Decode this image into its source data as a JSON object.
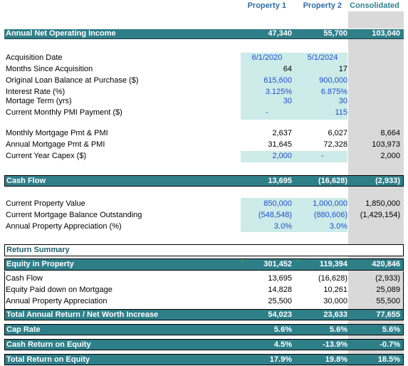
{
  "columns": {
    "p1": "Property 1",
    "p2": "Property 2",
    "cons": "Consolidated"
  },
  "noi": {
    "label": "Annual Net Operating Income",
    "p1": "47,340",
    "p2": "55,700",
    "cons": "103,040"
  },
  "details": [
    {
      "label": "Acquisition Date",
      "p1": "6/1/2020",
      "p2": "5/1/2024",
      "cons": ""
    },
    {
      "label": "Months Since Acquisition",
      "p1": "64",
      "p2": "17",
      "cons": ""
    },
    {
      "label": "Original Loan Balance at Purchase ($)",
      "p1": "615,600",
      "p2": "900,000",
      "cons": ""
    },
    {
      "label": "Interest Rate (%)",
      "p1": "3.125%",
      "p2": "6.875%",
      "cons": ""
    },
    {
      "label": "Mortage Term (yrs)",
      "p1": "30",
      "p2": "30",
      "cons": ""
    },
    {
      "label": "Current Monthly PMI Payment ($)",
      "p1": "-",
      "p2": "115",
      "cons": ""
    }
  ],
  "payments": [
    {
      "label": "Monthly Mortgage Pmt & PMI",
      "p1": "2,637",
      "p2": "6,027",
      "cons": "8,664"
    },
    {
      "label": "Annual Mortgage Pmt & PMI",
      "p1": "31,645",
      "p2": "72,328",
      "cons": "103,973"
    },
    {
      "label": "Current Year Capex ($)",
      "p1": "2,000",
      "p2": "-",
      "cons": "2,000"
    }
  ],
  "cash_flow": {
    "label": "Cash Flow",
    "p1": "13,695",
    "p2": "(16,628)",
    "cons": "(2,933)"
  },
  "values": [
    {
      "label": "Current Property Value",
      "p1": "850,000",
      "p2": "1,000,000",
      "cons": "1,850,000"
    },
    {
      "label": "Current Mortgage Balance Outstanding",
      "p1": "(548,548)",
      "p2": "(880,606)",
      "cons": "(1,429,154)"
    },
    {
      "label": "Annual Property Appreciation (%)",
      "p1": "3.0%",
      "p2": "3.0%",
      "cons": ""
    }
  ],
  "return_summary": {
    "title": "Return Summary",
    "equity": {
      "label": "Equity in Property",
      "p1": "301,452",
      "p2": "119,394",
      "cons": "420,846"
    },
    "items": [
      {
        "label": "Cash Flow",
        "p1": "13,695",
        "p2": "(16,628)",
        "cons": "(2,933)"
      },
      {
        "label": "Equity Paid down on Mortgage",
        "p1": "14,828",
        "p2": "10,261",
        "cons": "25,089"
      },
      {
        "label": "Annual Property Appreciation",
        "p1": "25,500",
        "p2": "30,000",
        "cons": "55,500"
      }
    ],
    "total": {
      "label": "Total Annual Return / Net Worth Increase",
      "p1": "54,023",
      "p2": "23,633",
      "cons": "77,655"
    },
    "cap_rate": {
      "label": "Cap Rate",
      "p1": "5.6%",
      "p2": "5.6%",
      "cons": "5.6%"
    },
    "cash_return": {
      "label": "Cash Return on Equity",
      "p1": "4.5%",
      "p2": "-13.9%",
      "cons": "-0.7%"
    },
    "total_return": {
      "label": "Total Return on Equity",
      "p1": "17.9%",
      "p2": "19.8%",
      "cons": "18.5%"
    }
  },
  "colors": {
    "band": "#2f7f89",
    "input_fill": "#ccebe9",
    "input_text": "#1f4fd0",
    "header_text": "#2e6ea6",
    "consolidated_fill": "#d9d9d9"
  }
}
